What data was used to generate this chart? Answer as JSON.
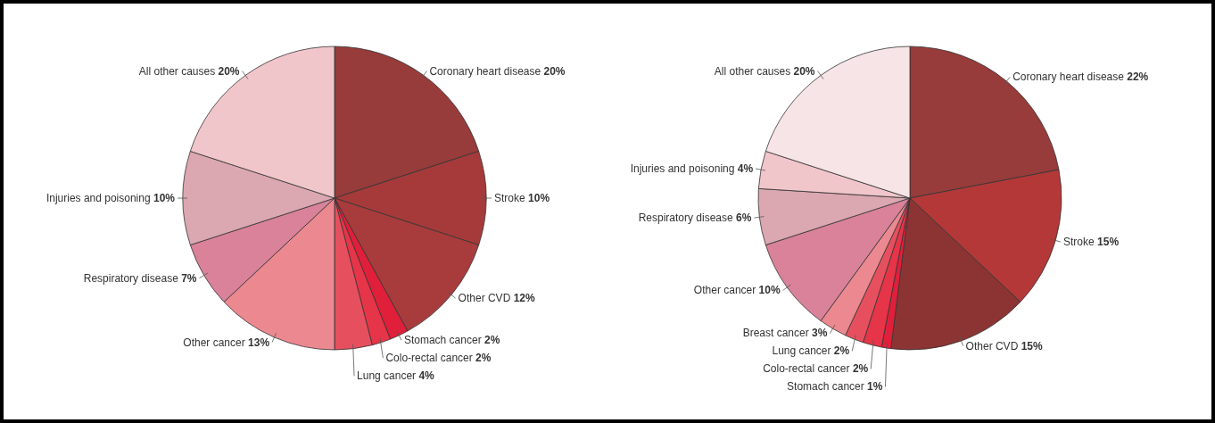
{
  "chart_data": [
    {
      "type": "pie",
      "categories": [
        "Coronary heart disease",
        "Stroke",
        "Other CVD",
        "Stomach cancer",
        "Colo-rectal cancer",
        "Lung cancer",
        "Other cancer",
        "Respiratory disease",
        "Injuries and poisoning",
        "All other causes"
      ],
      "values": [
        20,
        10,
        12,
        2,
        2,
        4,
        13,
        7,
        10,
        20
      ],
      "value_labels": [
        "20%",
        "10%",
        "12%",
        "2%",
        "2%",
        "4%",
        "13%",
        "7%",
        "10%",
        "20%"
      ],
      "colors": [
        "#973b3b",
        "#a63a3a",
        "#a83c3c",
        "#e01f3a",
        "#e63448",
        "#e6505e",
        "#eb8890",
        "#d9829a",
        "#dba7b0",
        "#f1c6ca"
      ]
    },
    {
      "type": "pie",
      "categories": [
        "Coronary heart disease",
        "Stroke",
        "Other CVD",
        "Stomach cancer",
        "Colo-rectal cancer",
        "Lung cancer",
        "Breast cancer",
        "Other cancer",
        "Respiratory disease",
        "Injuries and poisoning",
        "All other causes"
      ],
      "values": [
        22,
        15,
        15,
        1,
        2,
        2,
        3,
        10,
        6,
        4,
        20
      ],
      "value_labels": [
        "22%",
        "15%",
        "15%",
        "1%",
        "2%",
        "2%",
        "3%",
        "10%",
        "6%",
        "4%",
        "20%"
      ],
      "colors": [
        "#973b3b",
        "#b53838",
        "#8c3434",
        "#e01f3a",
        "#e63448",
        "#e6505e",
        "#eb8890",
        "#d9829a",
        "#dba7b0",
        "#f1c6ca",
        "#f7e4e6"
      ]
    }
  ]
}
